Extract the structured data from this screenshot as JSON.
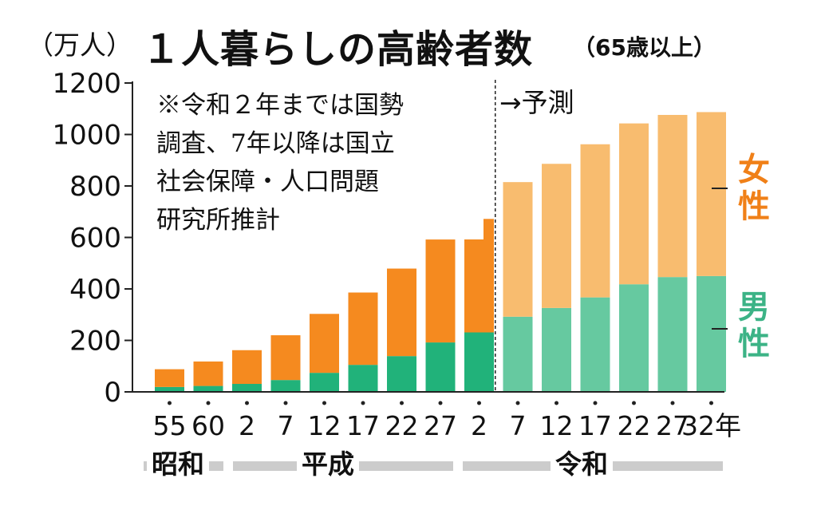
{
  "header": {
    "unit": "（万人）",
    "title": "１人暮らしの高齢者数",
    "subtitle": "（65歳以上）"
  },
  "note": "※令和２年までは国勢\n調査、7年以降は国立\n社会保障・人口問題\n研究所推計",
  "forecast_label": "→予測",
  "legend": {
    "female": "女\n性",
    "male": "男\n性"
  },
  "eras": {
    "showa": "昭和",
    "heisei": "平成",
    "reiwa": "令和"
  },
  "colors": {
    "female_actual": "#f58a1f",
    "male_actual": "#21b27a",
    "female_forecast": "#f8bc6f",
    "male_forecast": "#66c9a0",
    "axis": "#222222",
    "era_bar": "#cccccc"
  },
  "chart_data": {
    "type": "bar",
    "stacked": true,
    "categories": [
      "55",
      "60",
      "2",
      "7",
      "12",
      "17",
      "22",
      "27",
      "2",
      "7",
      "12",
      "17",
      "22",
      "27",
      "32年"
    ],
    "era_groups": [
      "昭和",
      "昭和",
      "平成",
      "平成",
      "平成",
      "平成",
      "平成",
      "平成",
      "令和",
      "令和",
      "令和",
      "令和",
      "令和",
      "令和",
      "令和"
    ],
    "forecast_from_index": 9,
    "series": [
      {
        "name": "男性",
        "values": [
          19,
          23,
          31,
          46,
          74,
          105,
          139,
          192,
          231,
          292,
          326,
          367,
          418,
          446,
          450
        ]
      },
      {
        "name": "女性",
        "values": [
          69,
          95,
          131,
          174,
          229,
          281,
          340,
          400,
          441,
          523,
          560,
          595,
          625,
          630,
          637
        ]
      }
    ],
    "y_ticks": [
      0,
      200,
      400,
      600,
      800,
      1000,
      1200
    ],
    "ylim": [
      0,
      1200
    ],
    "title": "１人暮らしの高齢者数",
    "ylabel": "（万人）"
  }
}
